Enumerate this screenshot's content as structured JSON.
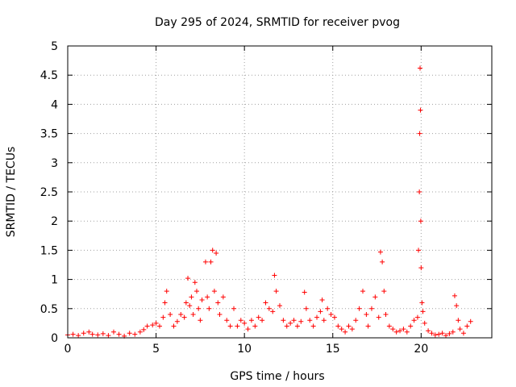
{
  "chart_data": {
    "type": "scatter",
    "title": "Day 295 of 2024, SRMTID for receiver pvog",
    "xlabel": "GPS time / hours",
    "ylabel": "SRMTID / TECUs",
    "xlim": [
      0,
      24
    ],
    "ylim": [
      0,
      5
    ],
    "xticks": [
      0,
      5,
      10,
      15,
      20
    ],
    "yticks": [
      0,
      0.5,
      1,
      1.5,
      2,
      2.5,
      3,
      3.5,
      4,
      4.5,
      5
    ],
    "xtick_labels": [
      "0",
      "5",
      "10",
      "15",
      "20"
    ],
    "ytick_labels": [
      "0",
      "0.5",
      "1",
      "1.5",
      "2",
      "2.5",
      "3",
      "3.5",
      "4",
      "4.5",
      "5"
    ],
    "grid": true,
    "marker": "+",
    "color": "#ff0000",
    "series": [
      {
        "name": "SRMTID",
        "x": [
          0.0,
          0.3,
          0.6,
          0.9,
          1.2,
          1.4,
          1.7,
          2.0,
          2.3,
          2.6,
          2.9,
          3.2,
          3.5,
          3.8,
          4.1,
          4.3,
          4.5,
          4.8,
          5.0,
          5.2,
          5.4,
          5.5,
          5.6,
          5.8,
          6.0,
          6.2,
          6.4,
          6.6,
          6.7,
          6.8,
          6.9,
          7.0,
          7.1,
          7.2,
          7.3,
          7.4,
          7.5,
          7.6,
          7.8,
          7.9,
          8.0,
          8.1,
          8.2,
          8.3,
          8.4,
          8.5,
          8.6,
          8.8,
          9.0,
          9.2,
          9.4,
          9.6,
          9.8,
          10.0,
          10.2,
          10.4,
          10.6,
          10.8,
          11.0,
          11.2,
          11.4,
          11.6,
          11.7,
          11.8,
          12.0,
          12.2,
          12.4,
          12.6,
          12.8,
          13.0,
          13.2,
          13.4,
          13.5,
          13.7,
          13.9,
          14.1,
          14.3,
          14.4,
          14.5,
          14.7,
          14.9,
          15.1,
          15.3,
          15.5,
          15.7,
          15.9,
          16.1,
          16.3,
          16.5,
          16.7,
          16.9,
          17.0,
          17.2,
          17.4,
          17.6,
          17.7,
          17.8,
          17.9,
          18.0,
          18.2,
          18.4,
          18.6,
          18.8,
          19.0,
          19.2,
          19.4,
          19.6,
          19.8,
          19.85,
          19.9,
          19.92,
          19.94,
          19.96,
          19.98,
          20.0,
          20.05,
          20.1,
          20.2,
          20.4,
          20.6,
          20.8,
          21.0,
          21.2,
          21.4,
          21.6,
          21.8,
          21.9,
          22.0,
          22.1,
          22.2,
          22.4,
          22.6,
          22.8
        ],
        "y": [
          0.05,
          0.06,
          0.04,
          0.08,
          0.1,
          0.06,
          0.05,
          0.07,
          0.04,
          0.1,
          0.06,
          0.03,
          0.08,
          0.06,
          0.1,
          0.14,
          0.2,
          0.22,
          0.25,
          0.2,
          0.35,
          0.6,
          0.8,
          0.4,
          0.2,
          0.28,
          0.4,
          0.35,
          0.6,
          1.02,
          0.55,
          0.7,
          0.4,
          0.95,
          0.8,
          0.5,
          0.3,
          0.65,
          1.3,
          0.7,
          0.5,
          1.3,
          1.5,
          0.8,
          1.45,
          0.6,
          0.4,
          0.7,
          0.3,
          0.2,
          0.5,
          0.2,
          0.3,
          0.25,
          0.15,
          0.3,
          0.2,
          0.35,
          0.3,
          0.6,
          0.5,
          0.45,
          1.07,
          0.8,
          0.55,
          0.3,
          0.2,
          0.25,
          0.3,
          0.2,
          0.28,
          0.78,
          0.5,
          0.3,
          0.2,
          0.35,
          0.45,
          0.65,
          0.3,
          0.5,
          0.4,
          0.35,
          0.2,
          0.15,
          0.1,
          0.2,
          0.15,
          0.3,
          0.5,
          0.8,
          0.4,
          0.2,
          0.5,
          0.7,
          0.35,
          1.47,
          1.3,
          0.8,
          0.4,
          0.2,
          0.15,
          0.1,
          0.12,
          0.15,
          0.1,
          0.2,
          0.3,
          0.35,
          1.5,
          2.5,
          3.5,
          4.62,
          3.9,
          2.0,
          1.2,
          0.6,
          0.45,
          0.25,
          0.12,
          0.08,
          0.05,
          0.06,
          0.08,
          0.04,
          0.07,
          0.1,
          0.72,
          0.55,
          0.3,
          0.15,
          0.08,
          0.2,
          0.28
        ]
      }
    ]
  }
}
